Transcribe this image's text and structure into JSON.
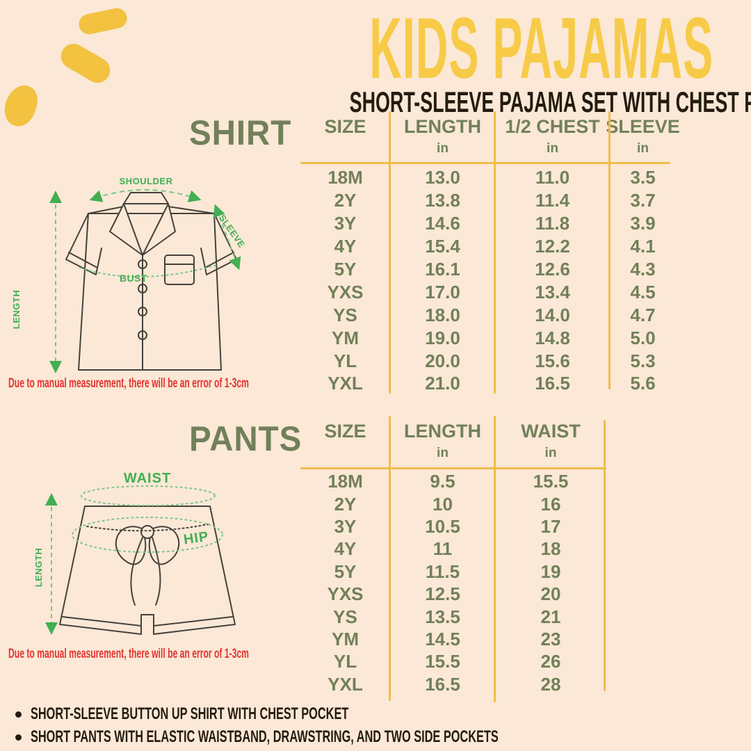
{
  "header": {
    "title": "KIDS PAJAMAS",
    "subtitle": "SHORT-SLEEVE PAJAMA SET WITH CHEST POCKET"
  },
  "shirt_section": {
    "heading": "SHIRT",
    "diagram": {
      "shoulder_label": "SHOULDER",
      "sleeve_label": "SLEEVE",
      "length_label": "LENGTH",
      "bust_label": "BUST"
    },
    "disclaimer": "Due to manual measurement, there will be an error of 1-3cm",
    "table": {
      "columns": [
        "SIZE",
        "LENGTH",
        "1/2 CHEST",
        "SLEEVE"
      ],
      "unit_label": "in",
      "rows": [
        [
          "18M",
          "13.0",
          "11.0",
          "3.5"
        ],
        [
          "2Y",
          "13.8",
          "11.4",
          "3.7"
        ],
        [
          "3Y",
          "14.6",
          "11.8",
          "3.9"
        ],
        [
          "4Y",
          "15.4",
          "12.2",
          "4.1"
        ],
        [
          "5Y",
          "16.1",
          "12.6",
          "4.3"
        ],
        [
          "YXS",
          "17.0",
          "13.4",
          "4.5"
        ],
        [
          "YS",
          "18.0",
          "14.0",
          "4.7"
        ],
        [
          "YM",
          "19.0",
          "14.8",
          "5.0"
        ],
        [
          "YL",
          "20.0",
          "15.6",
          "5.3"
        ],
        [
          "YXL",
          "21.0",
          "16.5",
          "5.6"
        ]
      ]
    }
  },
  "pants_section": {
    "heading": "PANTS",
    "diagram": {
      "waist_label": "WAIST",
      "hip_label": "HIP",
      "length_label": "LENGTH"
    },
    "disclaimer": "Due to manual measurement, there will be an error of 1-3cm",
    "table": {
      "columns": [
        "SIZE",
        "LENGTH",
        "WAIST"
      ],
      "unit_label": "in",
      "rows": [
        [
          "18M",
          "9.5",
          "15.5"
        ],
        [
          "2Y",
          "10",
          "16"
        ],
        [
          "3Y",
          "10.5",
          "17"
        ],
        [
          "4Y",
          "11",
          "18"
        ],
        [
          "5Y",
          "11.5",
          "19"
        ],
        [
          "YXS",
          "12.5",
          "20"
        ],
        [
          "YS",
          "13.5",
          "21"
        ],
        [
          "YM",
          "14.5",
          "23"
        ],
        [
          "YL",
          "15.5",
          "26"
        ],
        [
          "YXL",
          "16.5",
          "28"
        ]
      ]
    }
  },
  "footer": {
    "bullets": [
      "SHORT-SLEEVE BUTTON UP SHIRT WITH CHEST POCKET",
      "SHORT PANTS WITH ELASTIC WAISTBAND, DRAWSTRING, AND TWO SIDE POCKETS"
    ]
  },
  "chart_data": [
    {
      "type": "table",
      "title": "SHIRT",
      "columns": [
        "SIZE",
        "LENGTH (in)",
        "1/2 CHEST (in)",
        "SLEEVE (in)"
      ],
      "rows": [
        [
          "18M",
          13.0,
          11.0,
          3.5
        ],
        [
          "2Y",
          13.8,
          11.4,
          3.7
        ],
        [
          "3Y",
          14.6,
          11.8,
          3.9
        ],
        [
          "4Y",
          15.4,
          12.2,
          4.1
        ],
        [
          "5Y",
          16.1,
          12.6,
          4.3
        ],
        [
          "YXS",
          17.0,
          13.4,
          4.5
        ],
        [
          "YS",
          18.0,
          14.0,
          4.7
        ],
        [
          "YM",
          19.0,
          14.8,
          5.0
        ],
        [
          "YL",
          20.0,
          15.6,
          5.3
        ],
        [
          "YXL",
          21.0,
          16.5,
          5.6
        ]
      ]
    },
    {
      "type": "table",
      "title": "PANTS",
      "columns": [
        "SIZE",
        "LENGTH (in)",
        "WAIST (in)"
      ],
      "rows": [
        [
          "18M",
          9.5,
          15.5
        ],
        [
          "2Y",
          10,
          16
        ],
        [
          "3Y",
          10.5,
          17
        ],
        [
          "4Y",
          11,
          18
        ],
        [
          "5Y",
          11.5,
          19
        ],
        [
          "YXS",
          12.5,
          20
        ],
        [
          "YS",
          13.5,
          21
        ],
        [
          "YM",
          14.5,
          23
        ],
        [
          "YL",
          15.5,
          26
        ],
        [
          "YXL",
          16.5,
          28
        ]
      ]
    }
  ],
  "colors": {
    "background": "#FBE8D6",
    "title_yellow": "#F7CB47",
    "blob_yellow": "#F2C240",
    "line_yellow": "#EFBD49",
    "sage_green": "#72805A",
    "bright_green": "#43AE54",
    "light_green": "#76C785",
    "alert_red": "#E23330",
    "text_ink": "#241B10",
    "drawing_outline": "#45413B"
  }
}
